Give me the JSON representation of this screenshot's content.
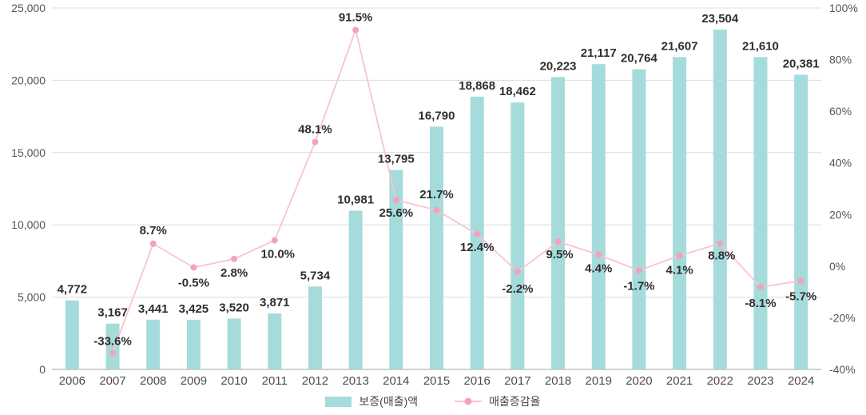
{
  "chart_data": {
    "type": "bar",
    "subtype": "bar+line combo",
    "title": "",
    "categories": [
      "2006",
      "2007",
      "2008",
      "2009",
      "2010",
      "2011",
      "2012",
      "2013",
      "2014",
      "2015",
      "2016",
      "2017",
      "2018",
      "2019",
      "2020",
      "2021",
      "2022",
      "2023",
      "2024"
    ],
    "series": [
      {
        "name": "보증(매출)액",
        "type": "bar",
        "axis": "left",
        "color": "#a5dbdb",
        "values": [
          4772,
          3167,
          3441,
          3425,
          3520,
          3871,
          5734,
          10981,
          13795,
          16790,
          18868,
          18462,
          20223,
          21117,
          20764,
          21607,
          23504,
          21610,
          20381
        ],
        "labels": [
          "4,772",
          "3,167",
          "3,441",
          "3,425",
          "3,520",
          "3,871",
          "5,734",
          "10,981",
          "13,795",
          "16,790",
          "18,868",
          "18,462",
          "20,223",
          "21,117",
          "20,764",
          "21,607",
          "23,504",
          "21,610",
          "20,381"
        ]
      },
      {
        "name": "매출증감율",
        "type": "line",
        "axis": "right",
        "color": "#f8c4d2",
        "marker_color": "#f1a3ba",
        "values": [
          null,
          -33.6,
          8.7,
          -0.5,
          2.8,
          10.0,
          48.1,
          91.5,
          25.6,
          21.7,
          12.4,
          -2.2,
          9.5,
          4.4,
          -1.7,
          4.1,
          8.8,
          -8.1,
          -5.7
        ],
        "labels": [
          "",
          "-33.6%",
          "8.7%",
          "-0.5%",
          "2.8%",
          "10.0%",
          "48.1%",
          "91.5%",
          "25.6%",
          "21.7%",
          "12.4%",
          "-2.2%",
          "9.5%",
          "4.4%",
          "-1.7%",
          "4.1%",
          "8.8%",
          "-8.1%",
          "-5.7%"
        ]
      }
    ],
    "left_axis": {
      "min": 0,
      "max": 25000,
      "step": 5000,
      "tick_labels": [
        "0",
        "5,000",
        "10,000",
        "15,000",
        "20,000",
        "25,000"
      ]
    },
    "right_axis": {
      "min": -40,
      "max": 100,
      "step": 20,
      "tick_labels": [
        "-40%",
        "-20%",
        "0%",
        "20%",
        "40%",
        "60%",
        "80%",
        "100%"
      ]
    },
    "grid": "horizontal gridlines for left axis only",
    "legend_position": "bottom"
  },
  "legend": {
    "items": [
      {
        "label": "보증(매출)액"
      },
      {
        "label": "매출증감율"
      }
    ]
  },
  "colors": {
    "bar": "#a5dbdb",
    "line": "#f8c4d2",
    "marker": "#f1a3ba",
    "grid": "#dcdcdc",
    "baseline": "#c2c2c2",
    "data_label": "#2e2e2e",
    "axis_text": "#555555",
    "year_text": "#4d4d4d",
    "background": "#ffffff"
  }
}
